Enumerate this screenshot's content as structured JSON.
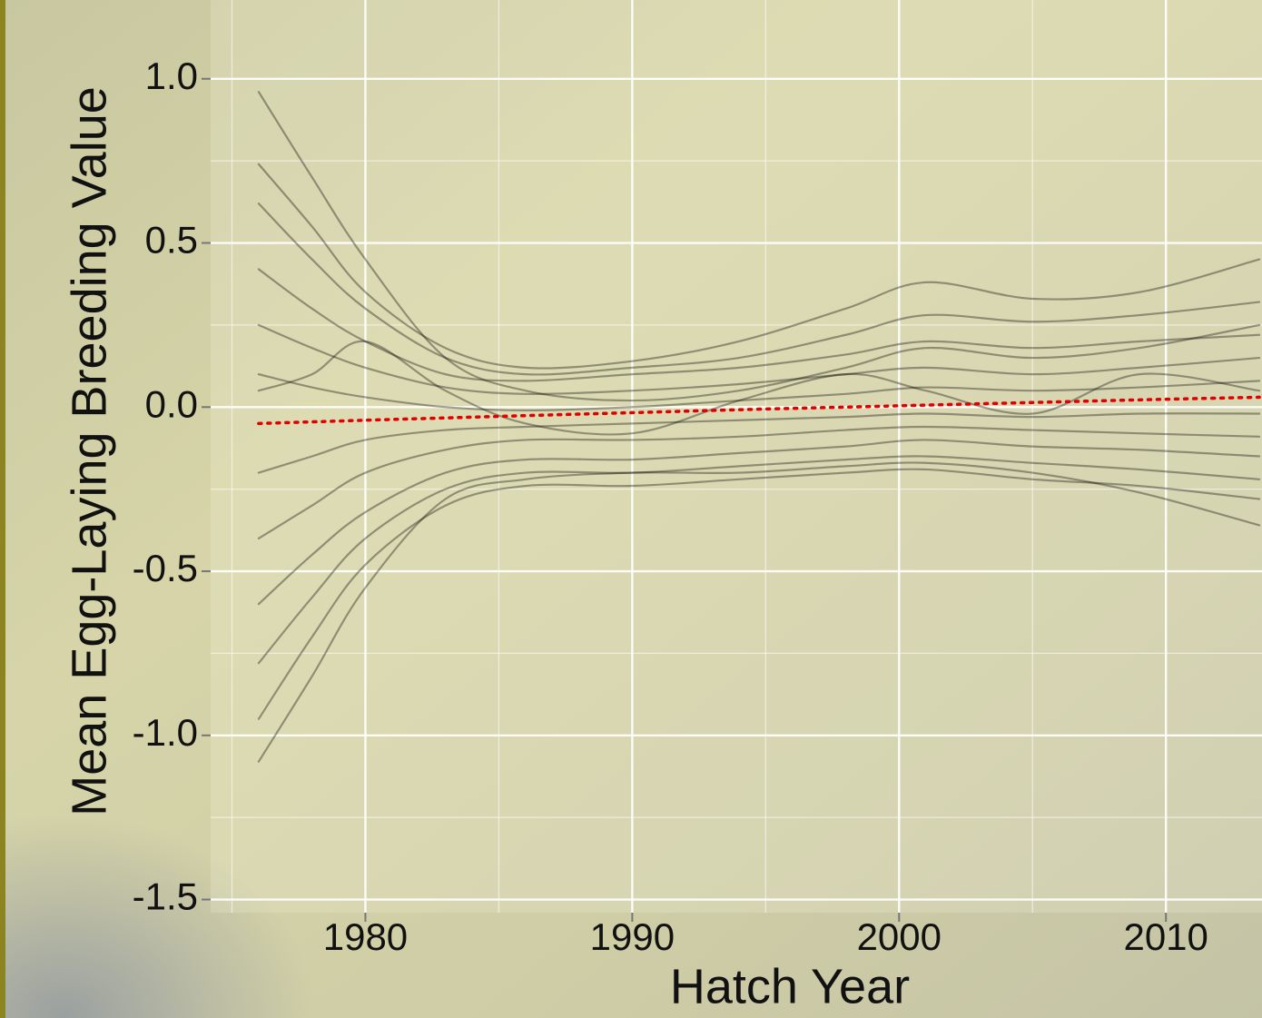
{
  "chart_data": {
    "type": "line",
    "x_label": "Hatch Year",
    "y_label": "Mean Egg-Laying Breeding Value",
    "x": [
      1976,
      1978,
      1980,
      1983,
      1986,
      1990,
      1994,
      1998,
      2001,
      2005,
      2009,
      2013.5
    ],
    "series": [
      {
        "color": "#000000",
        "values": [
          0.96,
          0.7,
          0.45,
          0.15,
          0.05,
          0.02,
          0.05,
          0.12,
          0.18,
          0.15,
          0.18,
          0.25
        ]
      },
      {
        "color": "#000000",
        "values": [
          0.74,
          0.55,
          0.35,
          0.18,
          0.12,
          0.14,
          0.2,
          0.3,
          0.38,
          0.33,
          0.35,
          0.45
        ]
      },
      {
        "color": "#000000",
        "values": [
          0.62,
          0.45,
          0.3,
          0.15,
          0.1,
          0.12,
          0.15,
          0.22,
          0.28,
          0.26,
          0.28,
          0.32
        ]
      },
      {
        "color": "#000000",
        "values": [
          0.42,
          0.3,
          0.2,
          0.1,
          0.08,
          0.1,
          0.12,
          0.16,
          0.2,
          0.18,
          0.2,
          0.22
        ]
      },
      {
        "color": "#000000",
        "values": [
          0.25,
          0.18,
          0.12,
          0.06,
          0.04,
          0.05,
          0.07,
          0.1,
          0.12,
          0.1,
          0.12,
          0.15
        ]
      },
      {
        "color": "#000000",
        "values": [
          0.1,
          0.06,
          0.03,
          0.0,
          -0.01,
          0.0,
          0.02,
          0.04,
          0.06,
          0.05,
          0.06,
          0.08
        ]
      },
      {
        "color": "#000000",
        "values": [
          0.05,
          0.1,
          0.2,
          0.05,
          -0.05,
          -0.08,
          0.02,
          0.1,
          0.05,
          -0.02,
          0.1,
          0.05
        ]
      },
      {
        "color": "#000000",
        "values": [
          -0.2,
          -0.15,
          -0.1,
          -0.07,
          -0.06,
          -0.05,
          -0.04,
          -0.03,
          -0.02,
          -0.03,
          -0.02,
          -0.02
        ]
      },
      {
        "color": "#000000",
        "values": [
          -0.4,
          -0.3,
          -0.2,
          -0.13,
          -0.1,
          -0.1,
          -0.09,
          -0.07,
          -0.06,
          -0.07,
          -0.08,
          -0.09
        ]
      },
      {
        "color": "#000000",
        "values": [
          -0.6,
          -0.45,
          -0.32,
          -0.2,
          -0.16,
          -0.16,
          -0.14,
          -0.12,
          -0.1,
          -0.12,
          -0.13,
          -0.15
        ]
      },
      {
        "color": "#000000",
        "values": [
          -0.78,
          -0.58,
          -0.4,
          -0.25,
          -0.2,
          -0.2,
          -0.18,
          -0.16,
          -0.15,
          -0.17,
          -0.19,
          -0.22
        ]
      },
      {
        "color": "#000000",
        "values": [
          -0.95,
          -0.7,
          -0.48,
          -0.3,
          -0.24,
          -0.24,
          -0.22,
          -0.2,
          -0.19,
          -0.22,
          -0.24,
          -0.28
        ]
      },
      {
        "color": "#000000",
        "values": [
          -1.08,
          -0.82,
          -0.55,
          -0.28,
          -0.22,
          -0.2,
          -0.2,
          -0.18,
          -0.17,
          -0.2,
          -0.26,
          -0.36
        ]
      },
      {
        "color": "#e00000",
        "linestyle": "dotted",
        "values": [
          -0.05,
          -0.045,
          -0.04,
          -0.033,
          -0.026,
          -0.017,
          -0.008,
          0.0,
          0.006,
          0.014,
          0.022,
          0.03
        ]
      }
    ],
    "xlim": [
      1974.2,
      2013.6
    ],
    "ylim": [
      -1.54,
      1.24
    ],
    "xticks": [
      1980,
      1990,
      2000,
      2010
    ],
    "yticks": [
      {
        "value": 1,
        "label": "1.0"
      },
      0.5,
      {
        "value": 0,
        "label": "0.0"
      },
      -0.5,
      {
        "value": -1,
        "label": "-1.0"
      },
      -1.5
    ],
    "x_minor_grid": [
      1975,
      1985,
      1995,
      2005
    ],
    "y_minor_grid": [
      0.75,
      0.25,
      -0.25,
      -0.75,
      -1.25
    ],
    "grid": true
  }
}
